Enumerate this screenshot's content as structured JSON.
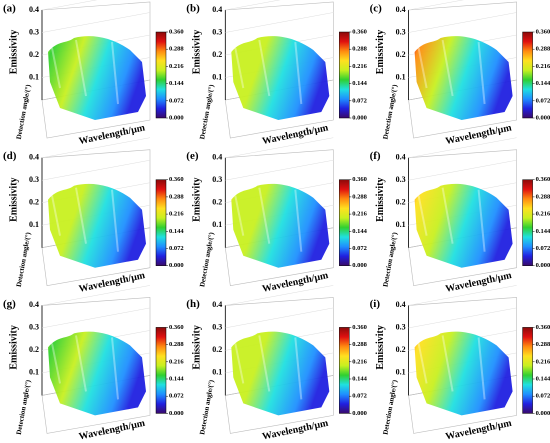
{
  "chart_data": [
    {
      "type": "surface",
      "title": "(a)",
      "zlabel": "Emissivity",
      "xlabel": "Wavelength/μm",
      "ylabel": "Detection angle/(°)",
      "zlim": [
        0,
        0.4
      ],
      "zticks": [
        0.1,
        0.2,
        0.3,
        0.4
      ],
      "clim": [
        0,
        0.36
      ],
      "cticks": [
        {
          "value": 0,
          "label": "0.000"
        },
        {
          "value": 0.072,
          "label": "0.072"
        },
        {
          "value": 0.144,
          "label": "0.144"
        },
        {
          "value": 0.216,
          "label": "0.216"
        },
        {
          "value": 0.288,
          "label": "0.288"
        },
        {
          "value": 0.36,
          "label": "0.360"
        }
      ]
    },
    {
      "type": "surface",
      "title": "(b)",
      "zlabel": "Emissivity",
      "xlabel": "Wavelength/μm",
      "ylabel": "Detection angle/(°)",
      "zlim": [
        0,
        0.4
      ],
      "zticks": [
        0.1,
        0.2,
        0.3,
        0.4
      ],
      "clim": [
        0,
        0.36
      ],
      "cticks": [
        {
          "value": 0,
          "label": "0.000"
        },
        {
          "value": 0.072,
          "label": "0.072"
        },
        {
          "value": 0.144,
          "label": "0.144"
        },
        {
          "value": 0.216,
          "label": "0.216"
        },
        {
          "value": 0.288,
          "label": "0.288"
        },
        {
          "value": 0.36,
          "label": "0.360"
        }
      ]
    },
    {
      "type": "surface",
      "title": "(c)",
      "zlabel": "Emissivity",
      "xlabel": "Wavelength/μm",
      "ylabel": "Detection angle/(°)",
      "zlim": [
        0,
        0.4
      ],
      "zticks": [
        0.1,
        0.2,
        0.3,
        0.4
      ],
      "clim": [
        0,
        0.36
      ],
      "cticks": [
        {
          "value": 0,
          "label": "0.000"
        },
        {
          "value": 0.072,
          "label": "0.072"
        },
        {
          "value": 0.144,
          "label": "0.144"
        },
        {
          "value": 0.216,
          "label": "0.216"
        },
        {
          "value": 0.288,
          "label": "0.288"
        },
        {
          "value": 0.36,
          "label": "0.360"
        }
      ]
    },
    {
      "type": "surface",
      "title": "(d)",
      "zlabel": "Emissivity",
      "xlabel": "Wavelength/μm",
      "ylabel": "Detection angle/(°)",
      "zlim": [
        0,
        0.4
      ],
      "zticks": [
        0.1,
        0.2,
        0.3,
        0.4
      ],
      "clim": [
        0,
        0.36
      ],
      "cticks": [
        {
          "value": 0,
          "label": "0.000"
        },
        {
          "value": 0.072,
          "label": "0.072"
        },
        {
          "value": 0.144,
          "label": "0.144"
        },
        {
          "value": 0.216,
          "label": "0.216"
        },
        {
          "value": 0.288,
          "label": "0.288"
        },
        {
          "value": 0.36,
          "label": "0.360"
        }
      ]
    },
    {
      "type": "surface",
      "title": "(e)",
      "zlabel": "Emissivity",
      "xlabel": "Wavelength/μm",
      "ylabel": "Detection angle/(°)",
      "zlim": [
        0,
        0.4
      ],
      "zticks": [
        0.1,
        0.2,
        0.3,
        0.4
      ],
      "clim": [
        0,
        0.36
      ],
      "cticks": [
        {
          "value": 0,
          "label": "0.000"
        },
        {
          "value": 0.072,
          "label": "0.072"
        },
        {
          "value": 0.144,
          "label": "0.144"
        },
        {
          "value": 0.216,
          "label": "0.216"
        },
        {
          "value": 0.288,
          "label": "0.288"
        },
        {
          "value": 0.36,
          "label": "0.360"
        }
      ]
    },
    {
      "type": "surface",
      "title": "(f)",
      "zlabel": "Emissivity",
      "xlabel": "Wavelength/μm",
      "ylabel": "Detection angle/(°)",
      "zlim": [
        0,
        0.4
      ],
      "zticks": [
        0.1,
        0.2,
        0.3,
        0.4
      ],
      "clim": [
        0,
        0.36
      ],
      "cticks": [
        {
          "value": 0,
          "label": "0.000"
        },
        {
          "value": 0.072,
          "label": "0.072"
        },
        {
          "value": 0.144,
          "label": "0.144"
        },
        {
          "value": 0.216,
          "label": "0.216"
        },
        {
          "value": 0.288,
          "label": "0.288"
        },
        {
          "value": 0.36,
          "label": "0.360"
        }
      ]
    },
    {
      "type": "surface",
      "title": "(g)",
      "zlabel": "Emissivity",
      "xlabel": "Wavelength/μm",
      "ylabel": "Detection angle/(°)",
      "zlim": [
        0,
        0.4
      ],
      "zticks": [
        0.1,
        0.2,
        0.3,
        0.4
      ],
      "clim": [
        0,
        0.36
      ],
      "cticks": [
        {
          "value": 0,
          "label": "0.000"
        },
        {
          "value": 0.072,
          "label": "0.072"
        },
        {
          "value": 0.144,
          "label": "0.144"
        },
        {
          "value": 0.216,
          "label": "0.216"
        },
        {
          "value": 0.288,
          "label": "0.288"
        },
        {
          "value": 0.36,
          "label": "0.360"
        }
      ]
    },
    {
      "type": "surface",
      "title": "(h)",
      "zlabel": "Emissivity",
      "xlabel": "Wavelength/μm",
      "ylabel": "Detection angle/(°)",
      "zlim": [
        0,
        0.4
      ],
      "zticks": [
        0.1,
        0.2,
        0.3,
        0.4
      ],
      "clim": [
        0,
        0.36
      ],
      "cticks": [
        {
          "value": 0,
          "label": "0.000"
        },
        {
          "value": 0.072,
          "label": "0.072"
        },
        {
          "value": 0.144,
          "label": "0.144"
        },
        {
          "value": 0.216,
          "label": "0.216"
        },
        {
          "value": 0.288,
          "label": "0.288"
        },
        {
          "value": 0.36,
          "label": "0.360"
        }
      ]
    },
    {
      "type": "surface",
      "title": "(i)",
      "zlabel": "Emissivity",
      "xlabel": "Wavelength/μm",
      "ylabel": "Detection angle/(°)",
      "zlim": [
        0,
        0.4
      ],
      "zticks": [
        0.1,
        0.2,
        0.3,
        0.4
      ],
      "clim": [
        0,
        0.36
      ],
      "cticks": [
        {
          "value": 0,
          "label": "0.000"
        },
        {
          "value": 0.072,
          "label": "0.072"
        },
        {
          "value": 0.144,
          "label": "0.144"
        },
        {
          "value": 0.216,
          "label": "0.216"
        },
        {
          "value": 0.288,
          "label": "0.288"
        },
        {
          "value": 0.36,
          "label": "0.360"
        }
      ]
    }
  ]
}
